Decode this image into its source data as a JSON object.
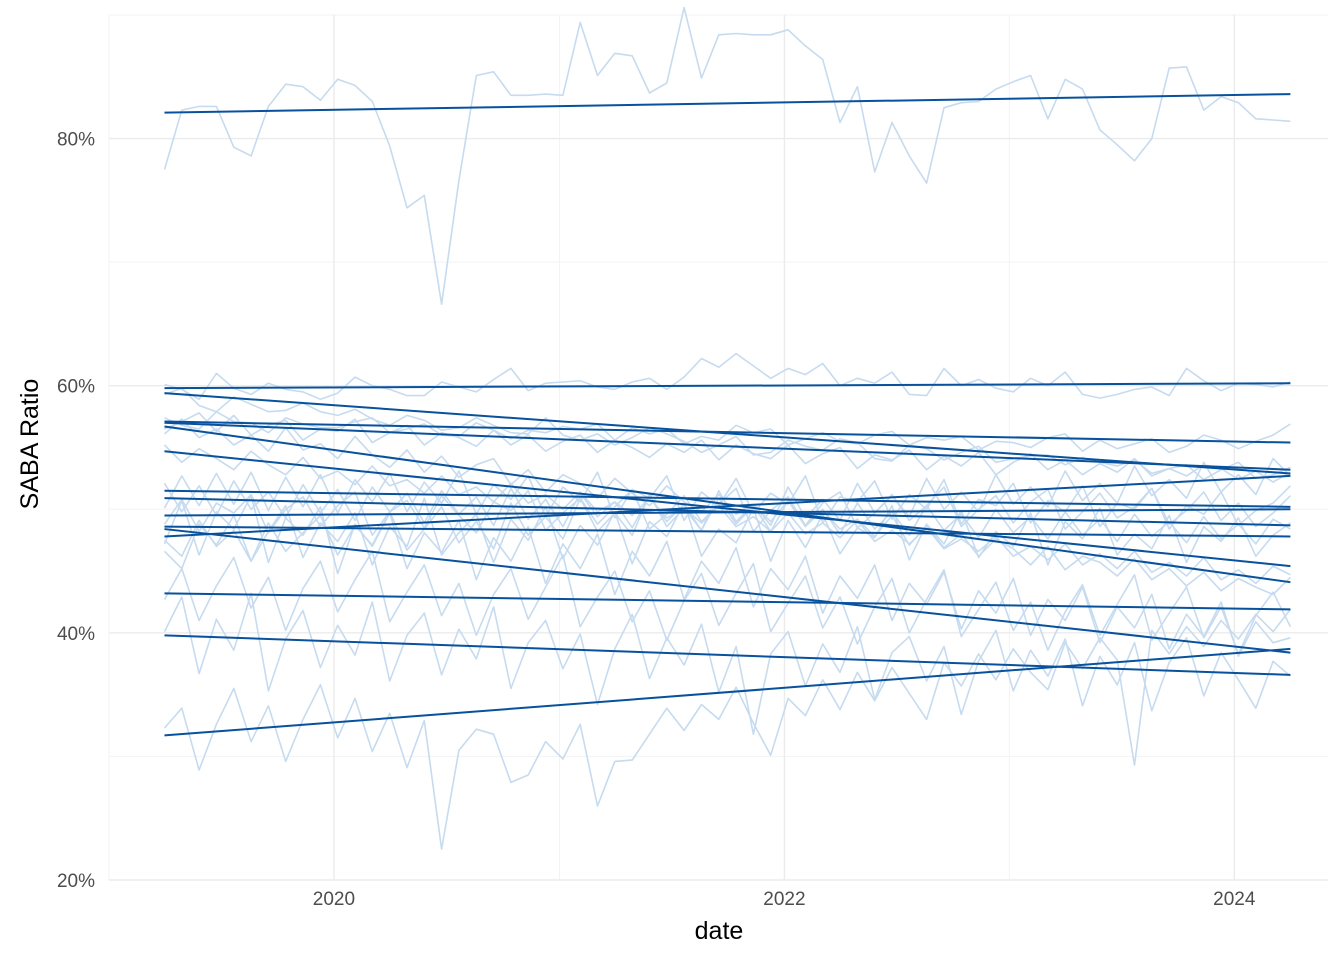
{
  "chart_data": {
    "type": "line",
    "title": "",
    "xlabel": "date",
    "ylabel": "SABA Ratio",
    "x_range": [
      "2019-01-01",
      "2024-06-01"
    ],
    "x_ticks": [
      {
        "value": "2020-01-01",
        "label": "2020"
      },
      {
        "value": "2022-01-01",
        "label": "2022"
      },
      {
        "value": "2024-01-01",
        "label": "2024"
      }
    ],
    "ylim": [
      0.2,
      0.9
    ],
    "y_ticks": [
      {
        "value": 0.2,
        "label": "20%"
      },
      {
        "value": 0.4,
        "label": "40%"
      },
      {
        "value": 0.6,
        "label": "60%"
      },
      {
        "value": 0.8,
        "label": "80%"
      }
    ],
    "grid": true,
    "colors": {
      "raw_series": "#c6dbef",
      "trend_lines": "#08519c",
      "grid_major": "#ebebeb",
      "grid_minor": "#f3f3f3"
    },
    "x_start": "2019-04-01",
    "x_end": "2024-04-01",
    "trend_lines": [
      {
        "start": 0.821,
        "end": 0.836
      },
      {
        "start": 0.598,
        "end": 0.602
      },
      {
        "start": 0.594,
        "end": 0.529
      },
      {
        "start": 0.571,
        "end": 0.554
      },
      {
        "start": 0.57,
        "end": 0.532
      },
      {
        "start": 0.567,
        "end": 0.441
      },
      {
        "start": 0.547,
        "end": 0.454
      },
      {
        "start": 0.515,
        "end": 0.502
      },
      {
        "start": 0.509,
        "end": 0.487
      },
      {
        "start": 0.495,
        "end": 0.5
      },
      {
        "start": 0.486,
        "end": 0.478
      },
      {
        "start": 0.484,
        "end": 0.384
      },
      {
        "start": 0.478,
        "end": 0.527
      },
      {
        "start": 0.432,
        "end": 0.419
      },
      {
        "start": 0.398,
        "end": 0.366
      },
      {
        "start": 0.317,
        "end": 0.387
      }
    ],
    "raw_series": [
      [
        0.775,
        0.823,
        0.826,
        0.826,
        0.793,
        0.786,
        0.826,
        0.844,
        0.842,
        0.831,
        0.848,
        0.843,
        0.83,
        0.794,
        0.744,
        0.754,
        0.666,
        0.766,
        0.851,
        0.854,
        0.835,
        0.835,
        0.836,
        0.835,
        0.894,
        0.851,
        0.869,
        0.867,
        0.837,
        0.845,
        0.906,
        0.849,
        0.884,
        0.885,
        0.884,
        0.884,
        0.888,
        0.875,
        0.864,
        0.813,
        0.842,
        0.773,
        0.813,
        0.786,
        0.764,
        0.825,
        0.829,
        0.83,
        0.84,
        0.846,
        0.851,
        0.816,
        0.848,
        0.84,
        0.807,
        0.795,
        0.782,
        0.8,
        0.857,
        0.858,
        0.823,
        0.834,
        0.829,
        0.816,
        0.815,
        0.814
      ],
      [
        0.601,
        0.597,
        0.589,
        0.61,
        0.598,
        0.593,
        0.602,
        0.597,
        0.595,
        0.589,
        0.594,
        0.607,
        0.6,
        0.597,
        0.592,
        0.592,
        0.603,
        0.599,
        0.595,
        0.605,
        0.614,
        0.596,
        0.602,
        0.603,
        0.604,
        0.599,
        0.597,
        0.603,
        0.606,
        0.597,
        0.607,
        0.622,
        0.615,
        0.626,
        0.616,
        0.606,
        0.614,
        0.609,
        0.618,
        0.6,
        0.606,
        0.602,
        0.611,
        0.593,
        0.592,
        0.614,
        0.6,
        0.605,
        0.598,
        0.595,
        0.606,
        0.6,
        0.611,
        0.593,
        0.59,
        0.593,
        0.597,
        0.599,
        0.592,
        0.614,
        0.604,
        0.596,
        0.602,
        0.601,
        0.599,
        0.603
      ],
      [
        0.593,
        0.598,
        0.584,
        0.579,
        0.591,
        0.585,
        0.579,
        0.58,
        0.586,
        0.579,
        0.576,
        0.581,
        0.573,
        0.568,
        0.576,
        0.572,
        0.564,
        0.566,
        0.574,
        0.568,
        0.562,
        0.561,
        0.574,
        0.56,
        0.556,
        0.561,
        0.552,
        0.558,
        0.566,
        0.561,
        0.555,
        0.546,
        0.552,
        0.559,
        0.544,
        0.546,
        0.556,
        0.551,
        0.548,
        0.557,
        0.554,
        0.541,
        0.539,
        0.552,
        0.549,
        0.54,
        0.546,
        0.551,
        0.538,
        0.541,
        0.543,
        0.544,
        0.536,
        0.542,
        0.538,
        0.535,
        0.54,
        0.529,
        0.533,
        0.527,
        0.536,
        0.533,
        0.524,
        0.531,
        0.522,
        0.53
      ],
      [
        0.574,
        0.568,
        0.565,
        0.579,
        0.571,
        0.57,
        0.562,
        0.574,
        0.569,
        0.566,
        0.566,
        0.571,
        0.574,
        0.562,
        0.565,
        0.569,
        0.56,
        0.559,
        0.57,
        0.564,
        0.557,
        0.564,
        0.562,
        0.567,
        0.565,
        0.569,
        0.556,
        0.566,
        0.561,
        0.565,
        0.553,
        0.559,
        0.556,
        0.568,
        0.562,
        0.565,
        0.552,
        0.557,
        0.562,
        0.555,
        0.553,
        0.56,
        0.563,
        0.552,
        0.558,
        0.556,
        0.559,
        0.548,
        0.555,
        0.554,
        0.55,
        0.558,
        0.561,
        0.547,
        0.556,
        0.549,
        0.553,
        0.557,
        0.546,
        0.551,
        0.56,
        0.556,
        0.549,
        0.555,
        0.56,
        0.569
      ],
      [
        0.565,
        0.571,
        0.578,
        0.563,
        0.576,
        0.56,
        0.568,
        0.572,
        0.556,
        0.565,
        0.563,
        0.573,
        0.554,
        0.562,
        0.568,
        0.552,
        0.562,
        0.558,
        0.551,
        0.564,
        0.552,
        0.56,
        0.547,
        0.555,
        0.56,
        0.546,
        0.556,
        0.55,
        0.542,
        0.553,
        0.546,
        0.556,
        0.54,
        0.552,
        0.545,
        0.541,
        0.552,
        0.537,
        0.545,
        0.55,
        0.533,
        0.544,
        0.54,
        0.548,
        0.532,
        0.543,
        0.535,
        0.546,
        0.528,
        0.538,
        0.545,
        0.532,
        0.54,
        0.528,
        0.537,
        0.53,
        0.541,
        0.527,
        0.533,
        0.536,
        0.524,
        0.532,
        0.538,
        0.525,
        0.528,
        0.534
      ],
      [
        0.561,
        0.573,
        0.558,
        0.565,
        0.552,
        0.56,
        0.547,
        0.566,
        0.548,
        0.553,
        0.541,
        0.559,
        0.544,
        0.534,
        0.548,
        0.53,
        0.543,
        0.526,
        0.536,
        0.541,
        0.52,
        0.532,
        0.514,
        0.528,
        0.521,
        0.509,
        0.525,
        0.513,
        0.503,
        0.519,
        0.506,
        0.498,
        0.512,
        0.496,
        0.504,
        0.49,
        0.507,
        0.487,
        0.499,
        0.484,
        0.492,
        0.478,
        0.495,
        0.471,
        0.487,
        0.469,
        0.48,
        0.462,
        0.476,
        0.468,
        0.455,
        0.47,
        0.451,
        0.462,
        0.457,
        0.446,
        0.46,
        0.443,
        0.452,
        0.438,
        0.449,
        0.434,
        0.444,
        0.437,
        0.431,
        0.445
      ],
      [
        0.552,
        0.538,
        0.549,
        0.541,
        0.532,
        0.547,
        0.536,
        0.528,
        0.542,
        0.525,
        0.531,
        0.52,
        0.535,
        0.519,
        0.524,
        0.513,
        0.527,
        0.512,
        0.518,
        0.506,
        0.521,
        0.505,
        0.512,
        0.5,
        0.514,
        0.498,
        0.506,
        0.495,
        0.509,
        0.493,
        0.501,
        0.489,
        0.503,
        0.486,
        0.494,
        0.482,
        0.497,
        0.48,
        0.489,
        0.477,
        0.491,
        0.474,
        0.483,
        0.472,
        0.485,
        0.468,
        0.476,
        0.466,
        0.478,
        0.462,
        0.47,
        0.459,
        0.472,
        0.455,
        0.464,
        0.452,
        0.466,
        0.449,
        0.457,
        0.446,
        0.461,
        0.443,
        0.451,
        0.44,
        0.454,
        0.447
      ],
      [
        0.501,
        0.527,
        0.503,
        0.529,
        0.504,
        0.53,
        0.499,
        0.526,
        0.502,
        0.528,
        0.497,
        0.524,
        0.506,
        0.529,
        0.498,
        0.522,
        0.505,
        0.531,
        0.496,
        0.52,
        0.508,
        0.527,
        0.494,
        0.518,
        0.506,
        0.53,
        0.493,
        0.516,
        0.509,
        0.527,
        0.491,
        0.514,
        0.503,
        0.525,
        0.497,
        0.513,
        0.504,
        0.527,
        0.489,
        0.51,
        0.506,
        0.523,
        0.492,
        0.512,
        0.5,
        0.524,
        0.488,
        0.508,
        0.503,
        0.521,
        0.489,
        0.507,
        0.498,
        0.519,
        0.486,
        0.505,
        0.5,
        0.517,
        0.484,
        0.503,
        0.496,
        0.514,
        0.487,
        0.499,
        0.505,
        0.519
      ],
      [
        0.521,
        0.498,
        0.519,
        0.495,
        0.523,
        0.5,
        0.514,
        0.493,
        0.52,
        0.497,
        0.516,
        0.491,
        0.518,
        0.498,
        0.513,
        0.489,
        0.515,
        0.496,
        0.51,
        0.487,
        0.517,
        0.492,
        0.508,
        0.486,
        0.513,
        0.494,
        0.506,
        0.485,
        0.511,
        0.49,
        0.504,
        0.483,
        0.509,
        0.488,
        0.503,
        0.482,
        0.507,
        0.486,
        0.5,
        0.48,
        0.505,
        0.484,
        0.498,
        0.479,
        0.503,
        0.483,
        0.496,
        0.477,
        0.5,
        0.481,
        0.494,
        0.476,
        0.498,
        0.479,
        0.492,
        0.474,
        0.496,
        0.478,
        0.49,
        0.473,
        0.494,
        0.476,
        0.488,
        0.472,
        0.492,
        0.484
      ],
      [
        0.488,
        0.508,
        0.482,
        0.505,
        0.497,
        0.512,
        0.481,
        0.5,
        0.51,
        0.486,
        0.503,
        0.514,
        0.479,
        0.498,
        0.507,
        0.485,
        0.511,
        0.495,
        0.481,
        0.506,
        0.499,
        0.515,
        0.483,
        0.497,
        0.509,
        0.488,
        0.502,
        0.516,
        0.484,
        0.496,
        0.511,
        0.49,
        0.504,
        0.517,
        0.482,
        0.499,
        0.51,
        0.487,
        0.505,
        0.514,
        0.485,
        0.497,
        0.512,
        0.491,
        0.503,
        0.518,
        0.486,
        0.5,
        0.511,
        0.489,
        0.506,
        0.516,
        0.484,
        0.498,
        0.513,
        0.493,
        0.502,
        0.517,
        0.488,
        0.499,
        0.514,
        0.491,
        0.505,
        0.486,
        0.497,
        0.511
      ],
      [
        0.466,
        0.452,
        0.488,
        0.471,
        0.495,
        0.458,
        0.482,
        0.503,
        0.461,
        0.489,
        0.474,
        0.497,
        0.455,
        0.486,
        0.47,
        0.509,
        0.463,
        0.481,
        0.496,
        0.457,
        0.492,
        0.475,
        0.502,
        0.46,
        0.487,
        0.471,
        0.498,
        0.456,
        0.49,
        0.478,
        0.505,
        0.462,
        0.484,
        0.473,
        0.501,
        0.458,
        0.491,
        0.469,
        0.496,
        0.464,
        0.485,
        0.477,
        0.503,
        0.459,
        0.488,
        0.472,
        0.499,
        0.461,
        0.482,
        0.47,
        0.497,
        0.455,
        0.49,
        0.476,
        0.501,
        0.463,
        0.48,
        0.468,
        0.495,
        0.457,
        0.486,
        0.474,
        0.493,
        0.462,
        0.479,
        0.489
      ],
      [
        0.472,
        0.507,
        0.463,
        0.498,
        0.484,
        0.511,
        0.457,
        0.493,
        0.479,
        0.502,
        0.448,
        0.488,
        0.47,
        0.497,
        0.452,
        0.481,
        0.465,
        0.491,
        0.443,
        0.477,
        0.458,
        0.486,
        0.44,
        0.472,
        0.452,
        0.48,
        0.431,
        0.466,
        0.446,
        0.474,
        0.427,
        0.458,
        0.44,
        0.469,
        0.421,
        0.452,
        0.435,
        0.462,
        0.416,
        0.446,
        0.428,
        0.455,
        0.41,
        0.44,
        0.423,
        0.449,
        0.403,
        0.434,
        0.416,
        0.444,
        0.398,
        0.427,
        0.41,
        0.437,
        0.392,
        0.421,
        0.404,
        0.431,
        0.387,
        0.415,
        0.397,
        0.425,
        0.381,
        0.409,
        0.392,
        0.396
      ],
      [
        0.475,
        0.462,
        0.491,
        0.47,
        0.483,
        0.458,
        0.489,
        0.466,
        0.481,
        0.495,
        0.463,
        0.487,
        0.471,
        0.498,
        0.467,
        0.484,
        0.502,
        0.473,
        0.49,
        0.468,
        0.505,
        0.479,
        0.494,
        0.476,
        0.509,
        0.482,
        0.497,
        0.479,
        0.512,
        0.486,
        0.501,
        0.483,
        0.515,
        0.49,
        0.504,
        0.487,
        0.518,
        0.493,
        0.508,
        0.491,
        0.521,
        0.497,
        0.511,
        0.494,
        0.525,
        0.5,
        0.514,
        0.498,
        0.528,
        0.504,
        0.518,
        0.502,
        0.531,
        0.507,
        0.521,
        0.505,
        0.535,
        0.511,
        0.524,
        0.509,
        0.538,
        0.514,
        0.528,
        0.512,
        0.541,
        0.527
      ],
      [
        0.427,
        0.452,
        0.41,
        0.438,
        0.461,
        0.42,
        0.445,
        0.402,
        0.436,
        0.458,
        0.417,
        0.443,
        0.466,
        0.409,
        0.433,
        0.455,
        0.414,
        0.44,
        0.398,
        0.431,
        0.452,
        0.411,
        0.437,
        0.463,
        0.405,
        0.429,
        0.45,
        0.409,
        0.434,
        0.394,
        0.426,
        0.448,
        0.406,
        0.432,
        0.456,
        0.401,
        0.424,
        0.446,
        0.404,
        0.429,
        0.391,
        0.421,
        0.444,
        0.4,
        0.427,
        0.451,
        0.397,
        0.419,
        0.441,
        0.402,
        0.425,
        0.386,
        0.417,
        0.439,
        0.398,
        0.423,
        0.447,
        0.394,
        0.416,
        0.437,
        0.396,
        0.421,
        0.383,
        0.414,
        0.433,
        0.405
      ],
      [
        0.401,
        0.429,
        0.367,
        0.411,
        0.386,
        0.432,
        0.353,
        0.395,
        0.418,
        0.372,
        0.406,
        0.382,
        0.425,
        0.361,
        0.398,
        0.416,
        0.366,
        0.403,
        0.379,
        0.421,
        0.355,
        0.392,
        0.41,
        0.371,
        0.399,
        0.342,
        0.387,
        0.415,
        0.363,
        0.396,
        0.374,
        0.407,
        0.352,
        0.389,
        0.318,
        0.383,
        0.401,
        0.357,
        0.391,
        0.368,
        0.405,
        0.346,
        0.384,
        0.397,
        0.361,
        0.389,
        0.334,
        0.377,
        0.402,
        0.353,
        0.386,
        0.365,
        0.395,
        0.341,
        0.381,
        0.358,
        0.392,
        0.337,
        0.376,
        0.396,
        0.349,
        0.384,
        0.362,
        0.339,
        0.377,
        0.365
      ],
      [
        0.323,
        0.339,
        0.289,
        0.326,
        0.355,
        0.312,
        0.341,
        0.296,
        0.33,
        0.358,
        0.315,
        0.347,
        0.304,
        0.335,
        0.291,
        0.329,
        0.225,
        0.305,
        0.322,
        0.318,
        0.279,
        0.285,
        0.312,
        0.298,
        0.326,
        0.26,
        0.296,
        0.297,
        0.318,
        0.339,
        0.321,
        0.342,
        0.33,
        0.356,
        0.327,
        0.301,
        0.347,
        0.333,
        0.362,
        0.338,
        0.368,
        0.345,
        0.372,
        0.351,
        0.33,
        0.376,
        0.357,
        0.383,
        0.362,
        0.387,
        0.368,
        0.354,
        0.392,
        0.371,
        0.396,
        0.378,
        0.293,
        0.402,
        0.383,
        0.405,
        0.389,
        0.41,
        0.395,
        0.415,
        0.401,
        0.419
      ]
    ]
  }
}
